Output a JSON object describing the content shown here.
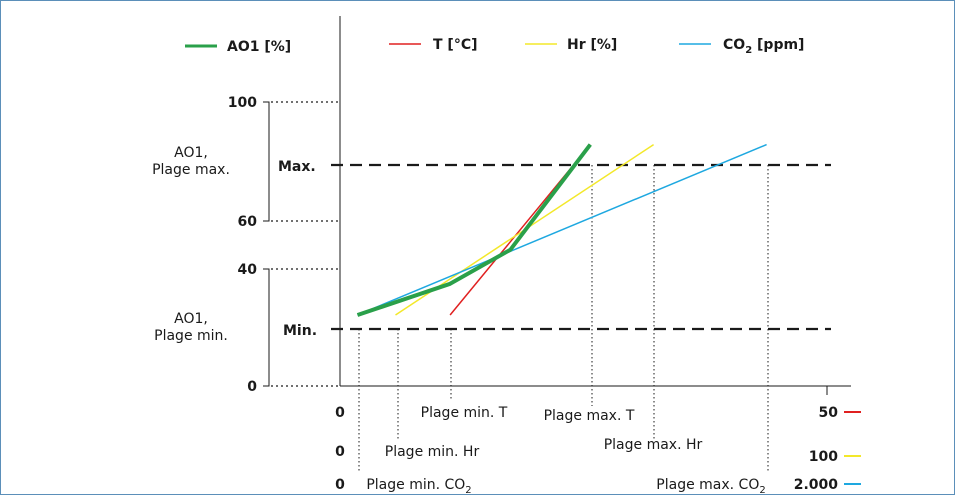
{
  "chart_data": {
    "type": "line",
    "legend": [
      {
        "label": "AO1 [%]",
        "color": "#2aa04a"
      },
      {
        "label": "T [°C]",
        "color": "#e02020"
      },
      {
        "label": "Hr [%]",
        "color": "#f3e82a"
      },
      {
        "label": "CO",
        "label_sub": "2",
        "label_suffix": " [ppm]",
        "color": "#1ea8e0"
      }
    ],
    "y_ticks": [
      "100",
      "60",
      "40",
      "0"
    ],
    "y_range": [
      0,
      100
    ],
    "levels": {
      "max_label": "Max.",
      "min_label": "Min.",
      "max_value": 85,
      "min_value": 25
    },
    "range_labels": {
      "max_line1": "AO1,",
      "max_line2": "Plage max.",
      "min_line1": "AO1,",
      "min_line2": "Plage min."
    },
    "x_scales": [
      {
        "name": "T",
        "start": "0",
        "end": "50",
        "color": "#e02020",
        "min_label": "Plage min. T",
        "max_label": "Plage max. T"
      },
      {
        "name": "Hr",
        "start": "0",
        "end": "100",
        "color": "#f3e82a",
        "min_label": "Plage min. Hr",
        "max_label": "Plage max. Hr"
      },
      {
        "name": "CO2",
        "start": "0",
        "end": "2.000",
        "color": "#1ea8e0",
        "min_label": "Plage min. CO",
        "min_label_sub": "2",
        "max_label": "Plage max. CO",
        "max_label_sub": "2"
      }
    ],
    "x_range": [
      0,
      50
    ],
    "series": [
      {
        "name": "T [°C]",
        "color": "#e02020",
        "x": [
          11.3,
          25.7
        ],
        "y": [
          25,
          85
        ]
      },
      {
        "name": "Hr [%]",
        "color": "#f3e82a",
        "x": [
          5.7,
          32.2
        ],
        "y": [
          25,
          85
        ]
      },
      {
        "name": "CO2 [ppm]",
        "color": "#1ea8e0",
        "x": [
          1.8,
          43.8
        ],
        "y": [
          25,
          85
        ]
      },
      {
        "name": "AO1 [%]",
        "color": "#2aa04a",
        "x": [
          1.8,
          11.3,
          17.5,
          25.7
        ],
        "y": [
          25,
          36,
          48,
          85
        ]
      }
    ]
  }
}
